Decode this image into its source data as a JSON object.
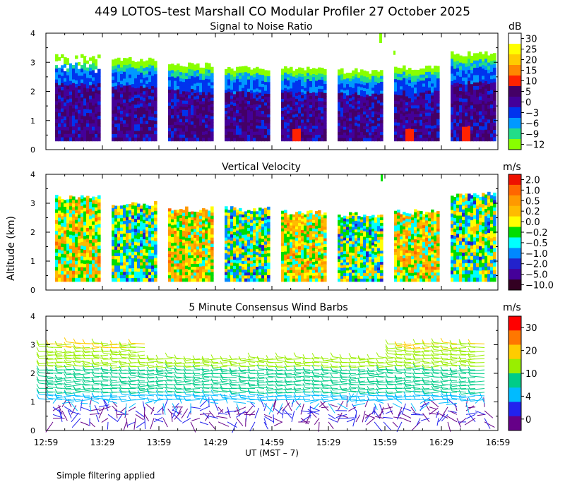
{
  "title": "449 LOTOS–test Marshall CO Modular Profiler 27 October 2025",
  "ylabel": "Altitude (km)",
  "xlabel": "UT  (MST – 7)",
  "footnote": "Simple filtering applied",
  "x_ticks": [
    "12:59",
    "13:29",
    "13:59",
    "14:29",
    "14:59",
    "15:29",
    "15:59",
    "16:29",
    "16:59"
  ],
  "y_ticks": [
    "0",
    "1",
    "2",
    "3",
    "4"
  ],
  "chart_data": [
    {
      "type": "heatmap",
      "title": "Signal to Noise Ratio",
      "unit": "dB",
      "ylim": [
        0,
        4
      ],
      "xlim": [
        "12:59",
        "16:59"
      ],
      "colorbar_labels": [
        "30",
        "25",
        "20",
        "15",
        "10",
        "5",
        "0",
        "−3",
        "−6",
        "−9",
        "−12"
      ],
      "colorbar_colors": [
        "#ffffff",
        "#ffff00",
        "#ffcc00",
        "#ff8800",
        "#ff2200",
        "#440066",
        "#440099",
        "#0033ee",
        "#0099ff",
        "#22dd88",
        "#88ff00"
      ],
      "segments_top_km": [
        3.2,
        3.1,
        2.9,
        2.8,
        2.8,
        2.7,
        2.8,
        3.3
      ],
      "data_bottom_km": 0.3
    },
    {
      "type": "heatmap",
      "title": "Vertical Velocity",
      "unit": "m/s",
      "ylim": [
        0,
        4
      ],
      "xlim": [
        "12:59",
        "16:59"
      ],
      "colorbar_labels": [
        "2.0",
        "1.0",
        "0.5",
        "0.2",
        "0.0",
        "−0.2",
        "−0.5",
        "−1.0",
        "−2.0",
        "−5.0",
        "−10.0"
      ],
      "colorbar_colors": [
        "#ee1100",
        "#ff6600",
        "#ff9900",
        "#ffbb00",
        "#ffff00",
        "#00dd00",
        "#00ffff",
        "#0088ff",
        "#2222cc",
        "#440099",
        "#330022"
      ],
      "segments_top_km": [
        3.2,
        3.0,
        2.8,
        2.8,
        2.7,
        2.6,
        2.7,
        3.3
      ],
      "data_bottom_km": 0.3
    },
    {
      "type": "scatter",
      "title": "5 Minute Consensus Wind Barbs",
      "unit": "m/s",
      "ylim": [
        0,
        4
      ],
      "xlim": [
        "12:59",
        "16:59"
      ],
      "colorbar_labels": [
        "30",
        "20",
        "10",
        "4",
        "0"
      ],
      "colorbar_colors": [
        "#ff0000",
        "#ff7700",
        "#ffcc00",
        "#99ee00",
        "#00cc88",
        "#00bbff",
        "#2222ee",
        "#660088"
      ]
    }
  ]
}
